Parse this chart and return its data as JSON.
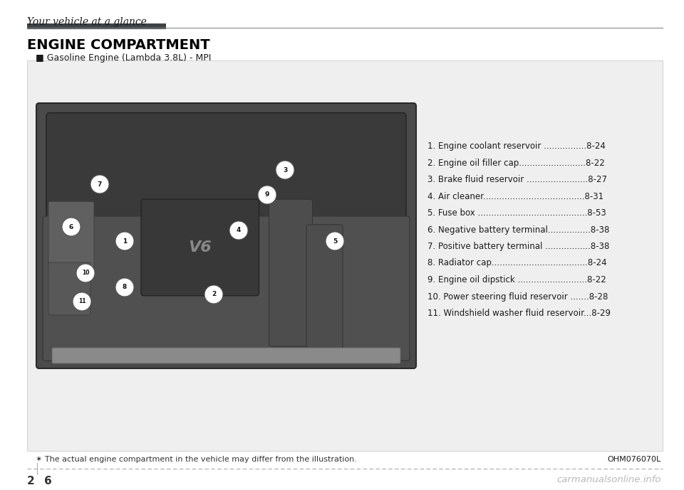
{
  "page_title": "Your vehicle at a glance",
  "section_title": "ENGINE COMPARTMENT",
  "subtitle": "■ Gasoline Engine (Lambda 3.8L) - MPI",
  "image_code": "OHM076070L",
  "note": "✶ The actual engine compartment in the vehicle may differ from the illustration.",
  "watermark": "carmanualsonline.info",
  "items": [
    "1. Engine coolant reservoir ................8-24",
    "2. Engine oil filler cap.........................8-22",
    "3. Brake fluid reservoir .......................8-27",
    "4. Air cleaner......................................8-31",
    "5. Fuse box .........................................8-53",
    "6. Negative battery terminal................8-38",
    "7. Positive battery terminal .................8-38",
    "8. Radiator cap....................................8-24",
    "9. Engine oil dipstick ..........................8-22",
    "10. Power steering fluid reservoir .......8-28",
    "11. Windshield washer fluid reservoir...8-29"
  ],
  "bg_color": "#ffffff",
  "outer_box_bg": "#efefef",
  "title_bar_dark": "#3d4347",
  "title_bar_light": "#888888",
  "text_color": "#1a1a1a",
  "note_color": "#333333",
  "watermark_color": "#b8b8b8",
  "page_num_color": "#333333"
}
